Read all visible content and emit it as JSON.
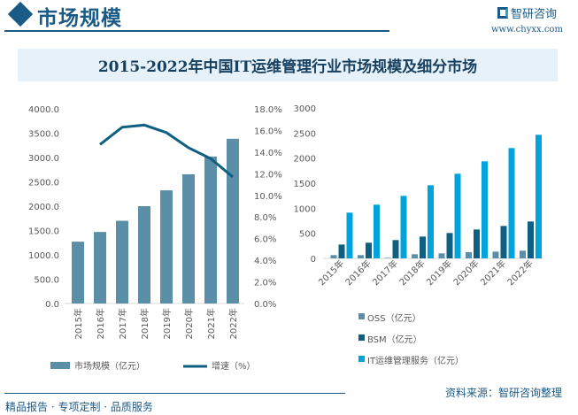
{
  "header": {
    "section_title": "市场规模",
    "logo_text": "智研咨询",
    "site": "www.chyxx.com"
  },
  "footer": {
    "source": "资料来源：智研咨询整理",
    "slogan": "精品报告 · 专项定制 · 品质服务"
  },
  "colors": {
    "market": "#5b8fa8",
    "growth": "#0e5f82",
    "oss": "#5b8fa8",
    "bsm": "#0e5f82",
    "it": "#00a3dc"
  },
  "chart_title": "2015-2022年中国IT运维管理行业市场规模及细分市场",
  "chart_data": [
    {
      "type": "bar+line",
      "categories": [
        "2015年",
        "2016年",
        "2017年",
        "2018年",
        "2019年",
        "2020年",
        "2021年",
        "2022年"
      ],
      "series": [
        {
          "name": "市场规模（亿元）",
          "type": "bar",
          "axis": "left",
          "values": [
            1270,
            1470,
            1700,
            2000,
            2325,
            2655,
            3020,
            3385
          ]
        },
        {
          "name": "增速（%）",
          "type": "line",
          "axis": "right",
          "values": [
            null,
            14.7,
            16.3,
            16.5,
            15.8,
            14.4,
            13.4,
            11.7
          ]
        }
      ],
      "ylim_left": [
        0,
        4000
      ],
      "yticks_left": [
        "0.0",
        "500.0",
        "1000.0",
        "1500.0",
        "2000.0",
        "2500.0",
        "3000.0",
        "3500.0",
        "4000.0"
      ],
      "ylim_right": [
        0,
        18
      ],
      "yticks_right": [
        "0.0%",
        "2.0%",
        "4.0%",
        "6.0%",
        "8.0%",
        "10.0%",
        "12.0%",
        "14.0%",
        "16.0%",
        "18.0%"
      ],
      "legend": "bottom",
      "grid": false
    },
    {
      "type": "bar",
      "categories": [
        "2015年",
        "2016年",
        "2017年",
        "2018年",
        "2019年",
        "2020年",
        "2021年",
        "2022年"
      ],
      "series": [
        {
          "name": "OSS（亿元）",
          "values": [
            65,
            65,
            12,
            82,
            100,
            124,
            135,
            153
          ]
        },
        {
          "name": "BSM（亿元）",
          "values": [
            276,
            312,
            365,
            435,
            506,
            576,
            647,
            735
          ]
        },
        {
          "name": "IT运维管理服务（亿元）",
          "values": [
            912,
            1071,
            1247,
            1459,
            1688,
            1935,
            2200,
            2465
          ]
        }
      ],
      "ylim": [
        0,
        3000
      ],
      "yticks": [
        "0",
        "500",
        "1000",
        "1500",
        "2000",
        "2500",
        "3000"
      ],
      "legend": "right-bottom",
      "grid": false
    }
  ]
}
